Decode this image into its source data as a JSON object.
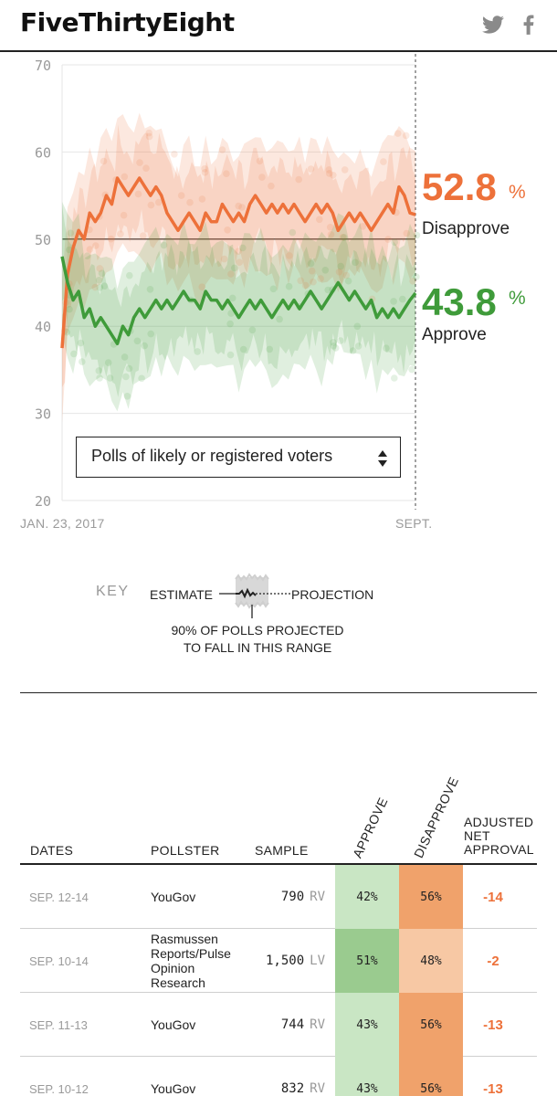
{
  "header": {
    "logo": "FiveThirtyEight",
    "share_icons": [
      "twitter-icon",
      "facebook-icon"
    ]
  },
  "chart_data": {
    "type": "line",
    "y_ticks": [
      "70",
      "60",
      "50",
      "40",
      "30",
      "20"
    ],
    "ylim": [
      20,
      70
    ],
    "x_labels": [
      "JAN. 23, 2017",
      "SEPT."
    ],
    "grid": true,
    "series": [
      {
        "name": "Disapprove",
        "color": "#ed713a",
        "final_value": "52.8",
        "values": [
          37.5,
          46,
          49,
          51,
          50,
          53,
          52,
          53,
          55,
          54,
          57,
          56,
          55,
          56,
          57,
          56,
          55,
          56,
          55,
          53,
          52,
          51,
          52,
          53,
          52,
          51,
          53,
          52,
          52,
          54,
          53,
          52,
          53,
          52,
          54,
          55,
          54,
          53,
          54,
          53,
          54,
          53,
          54,
          53,
          52,
          53,
          54,
          53,
          54,
          53,
          51,
          52,
          53,
          52,
          53,
          52,
          51,
          52,
          53,
          54,
          53,
          56,
          55,
          53,
          52.8
        ]
      },
      {
        "name": "Approve",
        "color": "#3f9b3a",
        "final_value": "43.8",
        "values": [
          48,
          45,
          43,
          44,
          41,
          42,
          40,
          41,
          40,
          39,
          38,
          40,
          39,
          41,
          42,
          41,
          42,
          43,
          42,
          43,
          42,
          43,
          44,
          43,
          43,
          42,
          44,
          43,
          43,
          42,
          43,
          42,
          41,
          42,
          43,
          42,
          43,
          42,
          41,
          42,
          43,
          42,
          43,
          42,
          43,
          44,
          43,
          42,
          43,
          44,
          45,
          44,
          43,
          44,
          43,
          42,
          43,
          41,
          42,
          41,
          42,
          41,
          42,
          43,
          43.8
        ]
      }
    ]
  },
  "chart_labels": {
    "disapprove_value": "52.8",
    "disapprove_pct": "%",
    "disapprove_label": "Disapprove",
    "approve_value": "43.8",
    "approve_pct": "%",
    "approve_label": "Approve"
  },
  "dropdown": {
    "selected": "Polls of likely or registered voters"
  },
  "key": {
    "title": "KEY",
    "estimate": "ESTIMATE",
    "projection": "PROJECTION",
    "range_line1": "90% OF POLLS PROJECTED",
    "range_line2": "TO FALL IN THIS RANGE"
  },
  "table": {
    "headers": {
      "dates": "DATES",
      "pollster": "POLLSTER",
      "sample": "SAMPLE",
      "approve": "APPROVE",
      "disapprove": "DISAPPROVE",
      "net_line1": "ADJUSTED",
      "net_line2": "NET",
      "net_line3": "APPROVAL"
    },
    "rows": [
      {
        "dates": "SEP. 12-14",
        "pollster": "YouGov",
        "sample": "790",
        "sample_type": "RV",
        "approve": "42%",
        "disapprove": "56%",
        "net": "-14",
        "approve_color": "#c9e6c4",
        "disapprove_color": "#f0a26b"
      },
      {
        "dates": "SEP. 10-14",
        "pollster": "Rasmussen Reports/Pulse Opinion Research",
        "sample": "1,500",
        "sample_type": "LV",
        "approve": "51%",
        "disapprove": "48%",
        "net": "-2",
        "approve_color": "#9acb8f",
        "disapprove_color": "#f7c8a4"
      },
      {
        "dates": "SEP. 11-13",
        "pollster": "YouGov",
        "sample": "744",
        "sample_type": "RV",
        "approve": "43%",
        "disapprove": "56%",
        "net": "-13",
        "approve_color": "#c9e6c4",
        "disapprove_color": "#f0a26b"
      },
      {
        "dates": "SEP. 10-12",
        "pollster": "YouGov",
        "sample": "832",
        "sample_type": "RV",
        "approve": "43%",
        "disapprove": "56%",
        "net": "-13",
        "approve_color": "#c9e6c4",
        "disapprove_color": "#f0a26b"
      }
    ]
  }
}
